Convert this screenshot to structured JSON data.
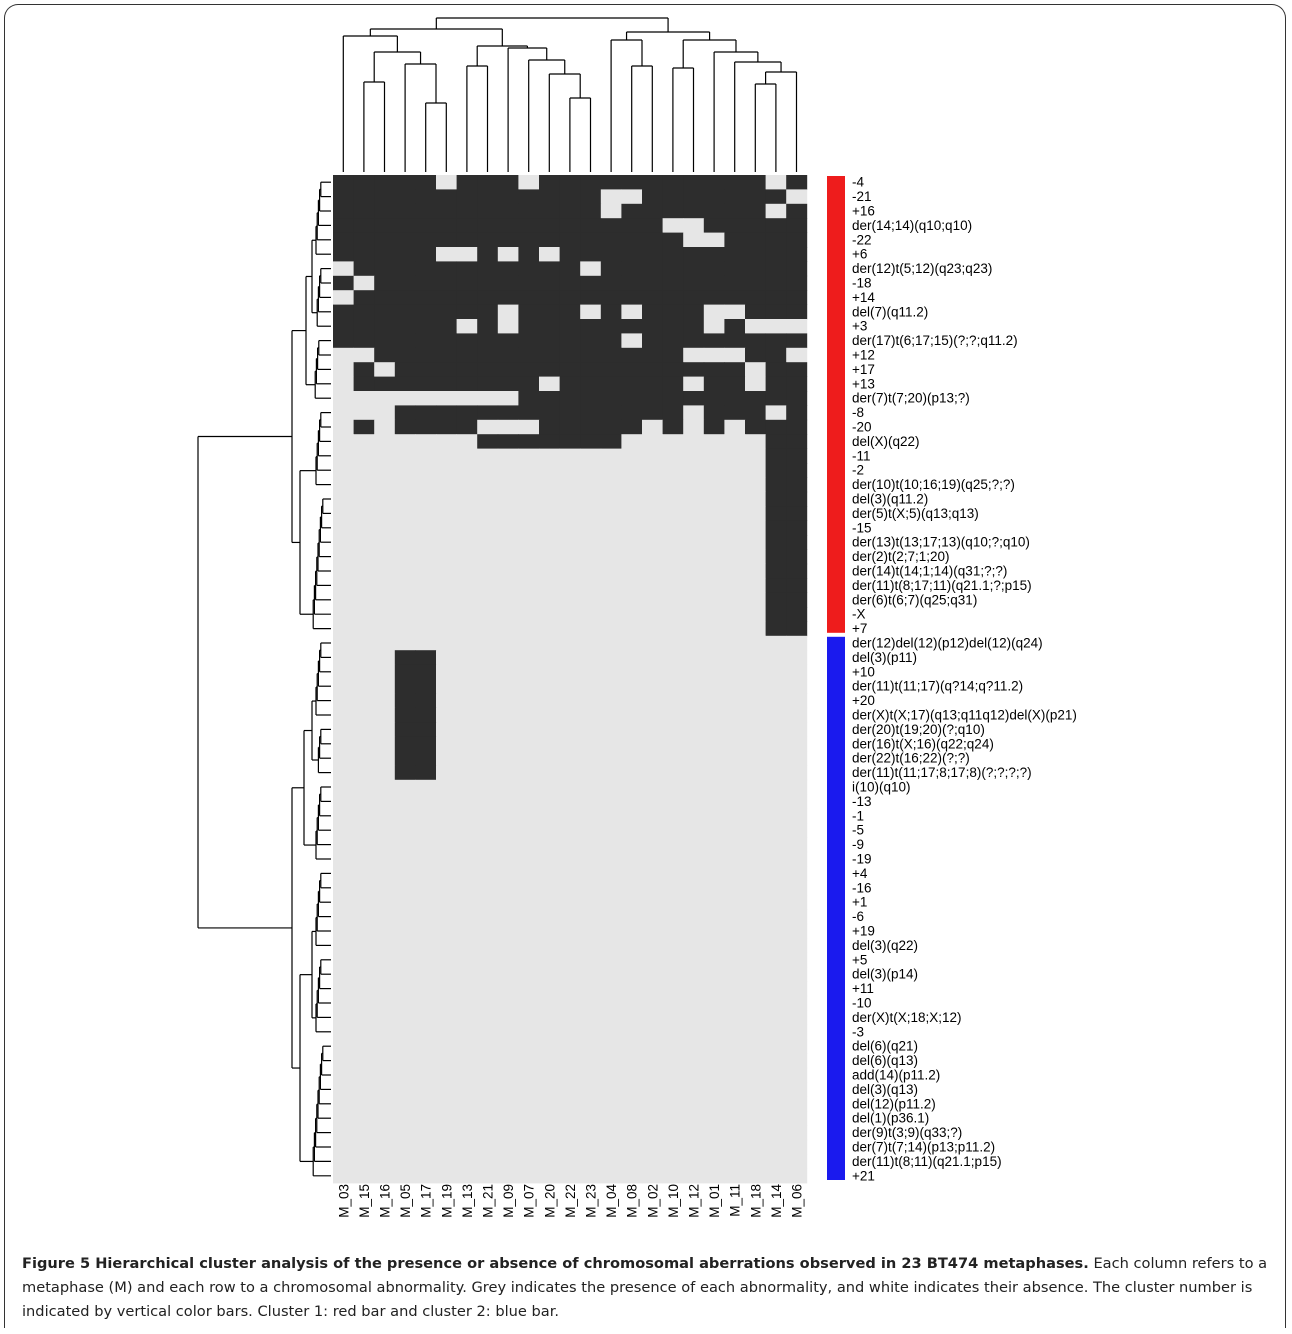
{
  "caption": {
    "lead": "Figure 5 Hierarchical cluster analysis of the presence or absence of chromosomal aberrations observed in 23 BT474 metaphases.",
    "body": "Each column refers to a metaphase (M) and each row to a chromosomal abnormality. Grey indicates the presence of each abnormality, and white indicates their absence. The cluster number is indicated by vertical color bars. Cluster 1: red bar and cluster 2: blue bar."
  },
  "colors": {
    "present": "#2d2d2d",
    "absent": "#e6e6e6",
    "cluster1": "#ee1c1c",
    "cluster2": "#1a1aee",
    "tree": "#000000"
  },
  "chart_data": {
    "type": "heatmap",
    "columns": [
      "M_03",
      "M_15",
      "M_16",
      "M_05",
      "M_17",
      "M_19",
      "M_13",
      "M_21",
      "M_09",
      "M_07",
      "M_20",
      "M_22",
      "M_23",
      "M_04",
      "M_08",
      "M_02",
      "M_10",
      "M_12",
      "M_01",
      "M_11",
      "M_18",
      "M_14",
      "M_06"
    ],
    "rows": [
      "-4",
      "-21",
      "+16",
      "der(14;14)(q10;q10)",
      "-22",
      "+6",
      "der(12)t(5;12)(q23;q23)",
      "-18",
      "+14",
      "del(7)(q11.2)",
      "+3",
      "der(17)t(6;17;15)(?;?;q11.2)",
      "+12",
      "+17",
      "+13",
      "der(7)t(7;20)(p13;?)",
      "-8",
      "-20",
      "del(X)(q22)",
      "-11",
      "-2",
      "der(10)t(10;16;19)(q25;?;?)",
      "del(3)(q11.2)",
      "der(5)t(X;5)(q13;q13)",
      "-15",
      "der(13)t(13;17;13)(q10;?;q10)",
      "der(2)t(2;7;1;20)",
      "der(14)t(14;1;14)(q31;?;?)",
      "der(11)t(8;17;11)(q21.1;?;p15)",
      "der(6)t(6;7)(q25;q31)",
      "-X",
      "+7",
      "der(12)del(12)(p12)del(12)(q24)",
      "del(3)(p11)",
      "+10",
      "der(11)t(11;17)(q?14;q?11.2)",
      "+20",
      "der(X)t(X;17)(q13;q11q12)del(X)(p21)",
      "der(20)t(19;20)(?;q10)",
      "der(16)t(X;16)(q22;q24)",
      "der(22)t(16;22)(?;?)",
      "der(11)t(11;17;8;17;8)(?;?;?;?)",
      "i(10)(q10)",
      "-13",
      "-1",
      "-5",
      "-9",
      "-19",
      "+4",
      "-16",
      "+1",
      "-6",
      "+19",
      "del(3)(q22)",
      "+5",
      "del(3)(p14)",
      "+11",
      "-10",
      "der(X)t(X;18;X;12)",
      "-3",
      "del(6)(q21)",
      "del(6)(q13)",
      "add(14)(p11.2)",
      "del(3)(q13)",
      "del(12)(p11.2)",
      "del(1)(p36.1)",
      "der(9)t(3;9)(q33;?)",
      "der(7)t(7;14)(p13;p11.2)",
      "der(11)t(8;11)(q21.1;p15)",
      "+21"
    ],
    "values": [
      "11111011101111111111101",
      "11111111111110011111110",
      "11111111111110111111101",
      "11111111111111110011111",
      "11111111111111111001111",
      "11111001010111111111111",
      "01111111111101111111111",
      "10111111111111111111111",
      "01111111111111111111111",
      "11111111011101011100111",
      "11111101011111111101000",
      "11111111111111011111111",
      "00111111111111111000110",
      "01011111111111111111011",
      "01111111110111111011011",
      "00000000011111111111111",
      "00011111111111111011101",
      "01011110001111101010111",
      "00000001111111000000011",
      "00000000000000000000011",
      "00000000000000000000011",
      "00000000000000000000011",
      "00000000000000000000011",
      "00000000000000000000011",
      "00000000000000000000011",
      "00000000000000000000011",
      "00000000000000000000011",
      "00000000000000000000011",
      "00000000000000000000011",
      "00000000000000000000011",
      "00000000000000000000011",
      "00000000000000000000011",
      "00000000000000000000000",
      "00011000000000000000000",
      "00011000000000000000000",
      "00011000000000000000000",
      "00011000000000000000000",
      "00011000000000000000000",
      "00011000000000000000000",
      "00011000000000000000000",
      "00011000000000000000000",
      "00011000000000000000000",
      "00000000000000000000000",
      "00000000000000000000000",
      "00000000000000000000000",
      "00000000000000000000000",
      "00000000000000000000000",
      "00000000000000000000000",
      "00000000000000000000000",
      "00000000000000000000000",
      "00000000000000000000000",
      "00000000000000000000000",
      "00000000000000000000000",
      "00000000000000000000000",
      "00000000000000000000000",
      "00000000000000000000000",
      "00000000000000000000000",
      "00000000000000000000000",
      "00000000000000000000000",
      "00000000000000000000000",
      "00000000000000000000000",
      "00000000000000000000000",
      "00000000000000000000000",
      "00000000000000000000000",
      "00000000000000000000000",
      "00000000000000000000000",
      "00000000000000000000000",
      "00000000000000000000000",
      "00000000000000000000000",
      "00000000000000000000000"
    ],
    "cluster_of_row": [
      1,
      1,
      1,
      1,
      1,
      1,
      1,
      1,
      1,
      1,
      1,
      1,
      1,
      1,
      1,
      1,
      1,
      1,
      1,
      1,
      1,
      1,
      1,
      1,
      1,
      1,
      1,
      1,
      1,
      1,
      1,
      1,
      2,
      2,
      2,
      2,
      2,
      2,
      2,
      2,
      2,
      2,
      2,
      2,
      2,
      2,
      2,
      2,
      2,
      2,
      2,
      2,
      2,
      2,
      2,
      2,
      2,
      2,
      2,
      2,
      2,
      2,
      2,
      2,
      2,
      2,
      2,
      2,
      2,
      2
    ]
  }
}
